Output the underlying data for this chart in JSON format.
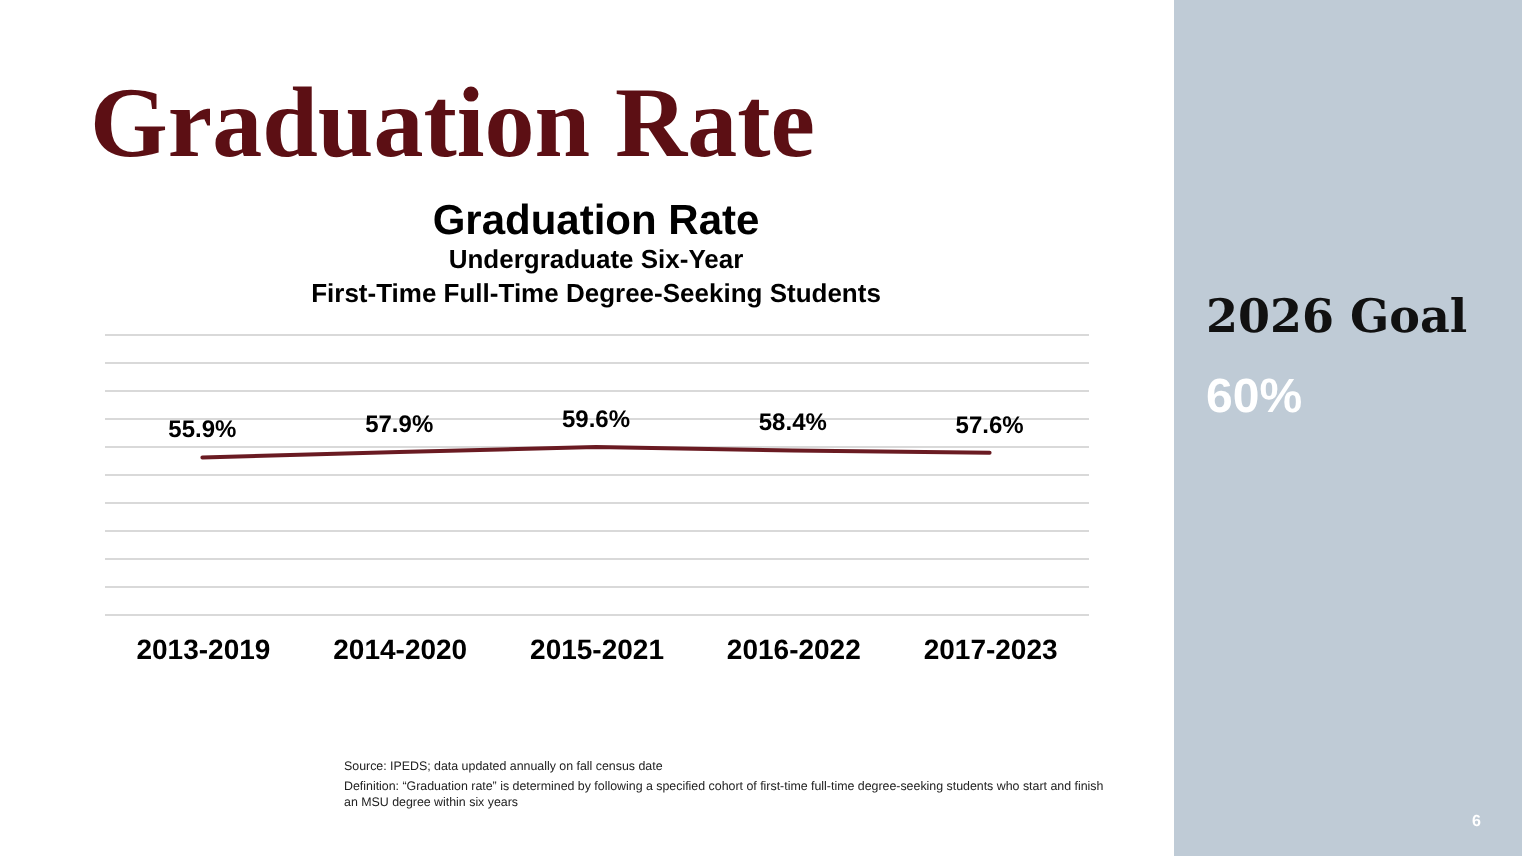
{
  "chart_data": {
    "type": "line",
    "title": "Graduation Rate",
    "subtitle": "Undergraduate Six-Year\nFirst-Time Full-Time Degree-Seeking Students",
    "categories": [
      "2013-2019",
      "2014-2020",
      "2015-2021",
      "2016-2022",
      "2017-2023"
    ],
    "series": [
      {
        "color": "#6a1b22",
        "values": [
          55.9,
          57.9,
          59.6,
          58.4,
          57.6
        ],
        "value_labels": [
          "55.9%",
          "57.9%",
          "59.6%",
          "58.4%",
          "57.6%"
        ]
      }
    ],
    "ylim": [
      0,
      100
    ],
    "yticks": [
      {
        "value": 0,
        "label": null
      },
      {
        "value": 10,
        "label": null
      },
      {
        "value": 20,
        "label": null
      },
      {
        "value": 30,
        "label": null
      },
      {
        "value": 40,
        "label": null
      },
      {
        "value": 50,
        "label": null
      },
      {
        "value": 60,
        "label": null
      },
      {
        "value": 70,
        "label": null
      },
      {
        "value": 80,
        "label": null
      },
      {
        "value": 90,
        "label": null
      },
      {
        "value": 100,
        "label": null
      }
    ],
    "tick_labels": "x",
    "grid": "y",
    "annotations": [
      "Graduation Rate",
      "2026 Goal",
      "60%",
      "Source: IPEDS; data updated annually on fall census date",
      "Definition: “Graduation rate” is determined by following a specified cohort of first-time full-time degree-seeking students who start and finish an MSU degree within six years",
      "6"
    ]
  }
}
